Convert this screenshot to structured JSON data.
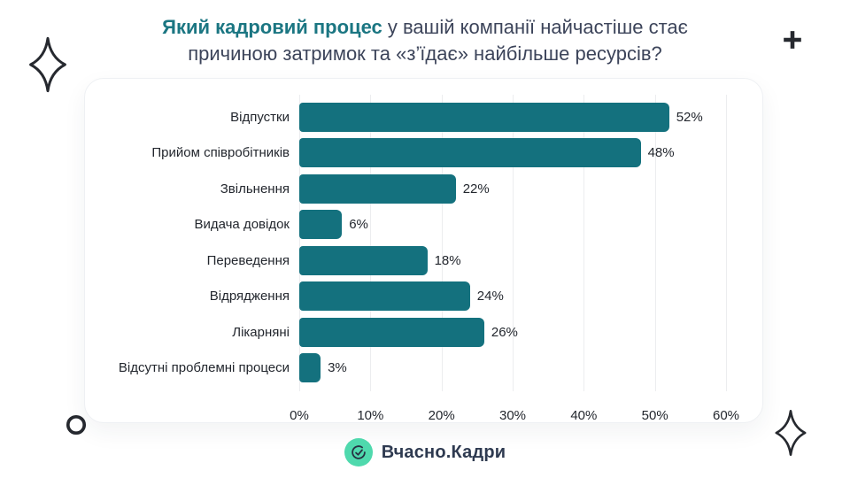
{
  "title": {
    "highlight": "Який кадровий процес",
    "rest_line1": " у вашій компанії найчастіше стає",
    "line2": "причиною затримок та «з’їдає» найбільше ресурсів?"
  },
  "chart_data": {
    "type": "bar",
    "orientation": "horizontal",
    "title": "Який кадровий процес у вашій компанії найчастіше стає причиною затримок та «з’їдає» найбільше ресурсів?",
    "categories": [
      "Відпустки",
      "Прийом співробітників",
      "Звільнення",
      "Видача довідок",
      "Переведення",
      "Відрядження",
      "Лікарняні",
      "Відсутні проблемні процеси"
    ],
    "values": [
      52,
      48,
      22,
      6,
      18,
      24,
      26,
      3
    ],
    "value_labels": [
      "52%",
      "48%",
      "22%",
      "6%",
      "18%",
      "24%",
      "26%",
      "3%"
    ],
    "x_ticks": [
      "0%",
      "10%",
      "20%",
      "30%",
      "40%",
      "50%",
      "60%"
    ],
    "xlim": [
      0,
      60
    ],
    "xlabel": "",
    "ylabel": "",
    "grid": true,
    "legend": "none",
    "bar_color": "#14717E"
  },
  "footer": {
    "brand": "Вчасно.Кадри",
    "logo_icon": "check-circle-icon"
  },
  "decorations": {
    "top_left": "sparkle-icon",
    "top_right": "plus-icon",
    "bottom_left": "circle-icon",
    "bottom_right": "sparkle-icon"
  },
  "colors": {
    "bar": "#14717E",
    "title_accent": "#1B7682",
    "title_text": "#3C445A",
    "label_text": "#23272E",
    "grid_line": "#ECEDEF",
    "mint": "#4FD9AD",
    "brand_text": "#2E3A50",
    "deco": "#26292F"
  }
}
